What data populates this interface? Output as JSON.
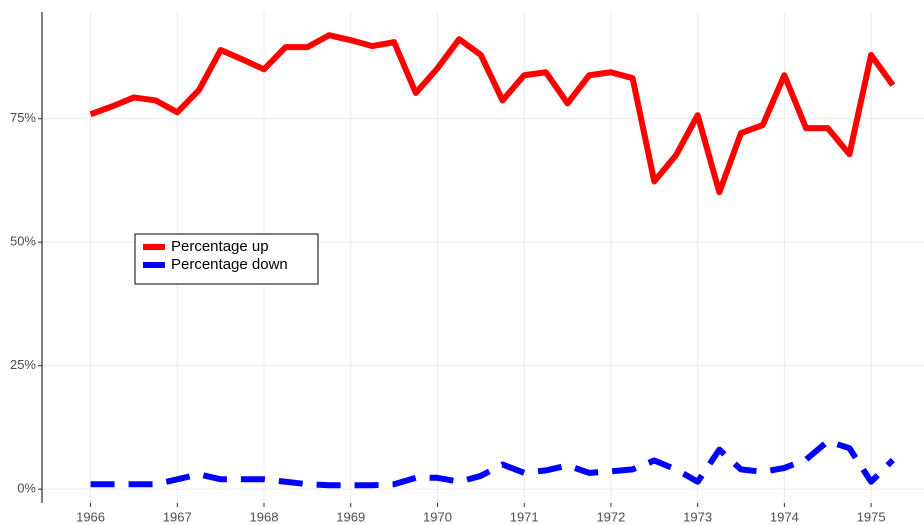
{
  "chart_data": {
    "type": "line",
    "x": [
      1966,
      1966.25,
      1966.5,
      1966.75,
      1967,
      1967.25,
      1967.5,
      1967.75,
      1968,
      1968.25,
      1968.5,
      1968.75,
      1969,
      1969.25,
      1969.5,
      1969.75,
      1970,
      1970.25,
      1970.5,
      1970.75,
      1971,
      1971.25,
      1971.5,
      1971.75,
      1972,
      1972.25,
      1972.5,
      1972.75,
      1973,
      1973.25,
      1973.5,
      1973.75,
      1974,
      1974.25,
      1974.5,
      1974.75,
      1975,
      1975.25
    ],
    "series": [
      {
        "name": "Percentage up",
        "color": "#ff0000",
        "dash": "solid",
        "values": [
          75.9,
          77.5,
          79.3,
          78.7,
          76.3,
          80.8,
          88.9,
          87.0,
          85.0,
          89.5,
          89.5,
          91.9,
          90.9,
          89.7,
          90.5,
          80.2,
          85.2,
          91.1,
          87.9,
          78.7,
          83.8,
          84.4,
          78.1,
          83.8,
          84.4,
          83.2,
          62.3,
          67.6,
          75.7,
          60.1,
          72.1,
          73.7,
          83.8,
          73.1,
          73.1,
          67.8,
          87.9,
          81.8
        ]
      },
      {
        "name": "Percentage down",
        "color": "#0000ff",
        "dash": "dashed",
        "values": [
          1,
          1,
          1,
          1,
          2,
          3,
          2,
          2,
          2,
          1.5,
          1,
          0.8,
          0.8,
          0.8,
          1,
          2.3,
          2.3,
          1.5,
          2.7,
          5,
          3.3,
          3.8,
          4.8,
          3.3,
          3.6,
          4,
          5.8,
          4,
          1.5,
          8,
          4,
          3.5,
          4.3,
          6,
          9.7,
          8.3,
          1.5,
          5.9
        ]
      }
    ],
    "xlim": [
      1965.44,
      1975.61
    ],
    "xticks": [
      1966,
      1967,
      1968,
      1969,
      1970,
      1971,
      1972,
      1973,
      1974,
      1975
    ],
    "ylim": [
      -2.8,
      96.6
    ],
    "yticks": [
      {
        "value": 0,
        "label": "0%"
      },
      {
        "value": 25,
        "label": "25%"
      },
      {
        "value": 50,
        "label": "50%"
      },
      {
        "value": 75,
        "label": "75%"
      }
    ],
    "grid": true,
    "legend": "left"
  }
}
